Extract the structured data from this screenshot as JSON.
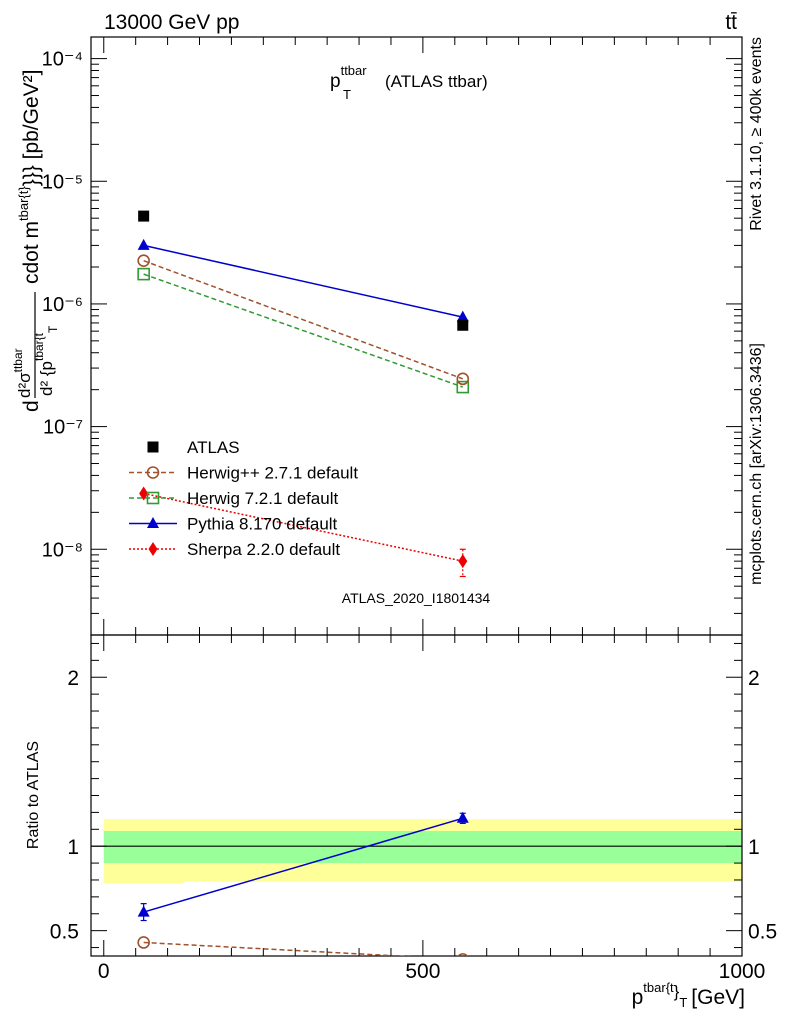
{
  "header": {
    "energy_label": "13000 GeV pp",
    "process_label": "tt̄"
  },
  "side_labels": {
    "rivet": "Rivet 3.1.10, ≥ 400k events",
    "mcplots": "mcplots.cern.ch [arXiv:1306.3436]"
  },
  "analysis_id": "ATLAS_2020_I1801434",
  "chart_data": [
    {
      "type": "line",
      "title": "p_T^ttbar (ATLAS ttbar)",
      "title_parts": {
        "main": "p",
        "sup": "ttbar",
        "sub": "T",
        "rest": "(ATLAS ttbar)"
      },
      "ylabel": "d d²σ^ttbar / d² {p^tbar{t}_T} cdot m^tbar{t}}} [pb/GeV²]",
      "ylabel_parts": {
        "d": "d",
        "num": "d²σ",
        "num_sup": "ttbar",
        "den": "d² {p",
        "den_sup": "tbar{t",
        "den_sub": "T",
        "mid": "cdot m",
        "mid_sup": "tbar{t}",
        "tail": "}}} [pb/GeV²]"
      },
      "yscale": "log",
      "ylim": [
        2e-09,
        0.00015
      ],
      "xlim": [
        -20,
        1000
      ],
      "y_tick_labels": [
        "10⁻⁸",
        "10⁻⁷",
        "10⁻⁶",
        "10⁻⁵",
        "10⁻⁴"
      ],
      "y_tick_values": [
        1e-08,
        1e-07,
        1e-06,
        1e-05,
        0.0001
      ],
      "x": [
        62.5,
        562.5
      ],
      "series": [
        {
          "name": "ATLAS",
          "marker": "square-filled",
          "color": "#000000",
          "line": "none",
          "values": [
            5.2e-06,
            6.7e-07
          ]
        },
        {
          "name": "Herwig++ 2.7.1 default",
          "marker": "circle-open",
          "color": "#a0522d",
          "line": "dashed",
          "values": [
            2.25e-06,
            2.45e-07
          ]
        },
        {
          "name": "Herwig 7.2.1 default",
          "marker": "square-open",
          "color": "#339933",
          "line": "dashed",
          "values": [
            1.75e-06,
            2.1e-07
          ]
        },
        {
          "name": "Pythia 8.170 default",
          "marker": "triangle-filled",
          "color": "#0000cc",
          "line": "solid",
          "values": [
            3e-06,
            7.8e-07
          ]
        },
        {
          "name": "Sherpa 2.2.0 default",
          "marker": "diamond-filled",
          "color": "#ee0000",
          "line": "dotted",
          "values": [
            2.85e-08,
            8e-09
          ],
          "errors": [
            0,
            2e-09
          ]
        }
      ],
      "legend_position": "bottom-left"
    },
    {
      "type": "line",
      "title": "",
      "ylabel": "Ratio to ATLAS",
      "xlabel": "p^tbar{t}_T [GeV]",
      "xlabel_parts": {
        "main": "p",
        "sup": "tbar{t",
        "mid": "}",
        "sub": "T",
        "unit": "[GeV]"
      },
      "ylim": [
        0.35,
        2.25
      ],
      "xlim": [
        -20,
        1000
      ],
      "y_tick_labels": [
        "0.5",
        "1",
        "2"
      ],
      "y_tick_values": [
        0.5,
        1,
        2
      ],
      "x_tick_labels": [
        "0",
        "500",
        "1000"
      ],
      "x_tick_values": [
        0,
        500,
        1000
      ],
      "reference": 1,
      "bands": [
        {
          "name": "stat",
          "color": "#99ff99",
          "segments": [
            {
              "x": [
                0,
                125
              ],
              "y": [
                0.9,
                1.09
              ]
            },
            {
              "x": [
                125,
                1000
              ],
              "y": [
                0.9,
                1.09
              ]
            }
          ]
        },
        {
          "name": "total",
          "color": "#ffff99",
          "segments": [
            {
              "x": [
                0,
                125
              ],
              "y": [
                0.78,
                1.16
              ]
            },
            {
              "x": [
                125,
                1000
              ],
              "y": [
                0.79,
                1.16
              ]
            }
          ]
        }
      ],
      "x": [
        62.5,
        562.5
      ],
      "series": [
        {
          "name": "Pythia 8.170 default",
          "marker": "triangle-filled",
          "color": "#0000cc",
          "line": "solid",
          "values": [
            0.61,
            1.165
          ],
          "errors": [
            0.05,
            0.03
          ]
        },
        {
          "name": "Herwig++ 2.7.1 default",
          "marker": "circle-open",
          "color": "#a0522d",
          "line": "dashed",
          "values": [
            0.43,
            0.33
          ]
        }
      ]
    }
  ]
}
